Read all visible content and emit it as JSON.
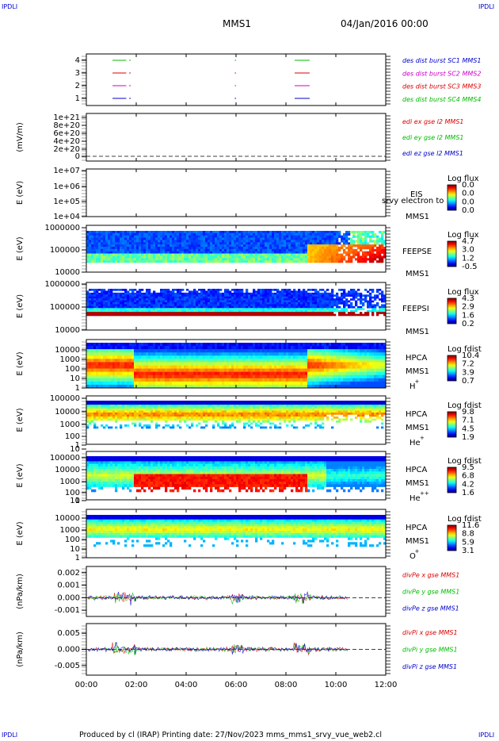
{
  "corner_label": "IPDLI",
  "header": {
    "spacecraft": "MMS1",
    "date": "04/Jan/2016 00:00"
  },
  "footer": "Produced by cl (IRAP)   Printing date: 27/Nov/2023   mms_mms1_srvy_vue_web2.cl",
  "colors": {
    "red": "#dd0000",
    "green": "#00bb00",
    "blue": "#0000cc",
    "magenta": "#cc00cc",
    "dashed": "#000000"
  },
  "chart_data": {
    "type": "stacked-timeseries",
    "x_ticks": [
      "00:00",
      "02:00",
      "04:00",
      "06:00",
      "08:00",
      "10:00",
      "12:00"
    ],
    "x_range_hours": [
      0,
      12
    ],
    "panels": [
      {
        "id": "burst",
        "type": "line",
        "yticks": [
          "4",
          "3",
          "2",
          "1"
        ],
        "legend": [
          {
            "text": "des dist burst SC1 MMS1",
            "color": "#0000cc"
          },
          {
            "text": "des dist burst SC2 MMS2",
            "color": "#cc00cc"
          },
          {
            "text": "des dist burst SC3 MMS3",
            "color": "#dd0000"
          },
          {
            "text": "des dist burst SC4 MMS4",
            "color": "#00bb00"
          }
        ],
        "segments": [
          {
            "level": 4,
            "color": "#00bb00",
            "x": [
              [
                1.05,
                1.6
              ],
              [
                1.72,
                1.78
              ],
              [
                5.95,
                6.0
              ],
              [
                8.35,
                8.95
              ]
            ]
          },
          {
            "level": 3,
            "color": "#dd0000",
            "x": [
              [
                1.05,
                1.6
              ],
              [
                1.72,
                1.78
              ],
              [
                5.95,
                6.0
              ],
              [
                8.35,
                8.95
              ]
            ]
          },
          {
            "level": 2,
            "color": "#cc00cc",
            "x": [
              [
                1.05,
                1.6
              ],
              [
                1.72,
                1.78
              ],
              [
                5.95,
                6.0
              ],
              [
                8.35,
                8.95
              ]
            ]
          },
          {
            "level": 1,
            "color": "#0000cc",
            "x": [
              [
                1.05,
                1.6
              ],
              [
                1.72,
                1.78
              ],
              [
                5.95,
                6.0
              ],
              [
                8.35,
                8.95
              ]
            ]
          }
        ]
      },
      {
        "id": "edi",
        "type": "line",
        "ylabel": "(mV/m)",
        "yticks": [
          "1e+21",
          "8e+20",
          "6e+20",
          "4e+20",
          "2e+20",
          "0"
        ],
        "legend": [
          {
            "text": "edi ex gse l2 MMS1",
            "color": "#dd0000"
          },
          {
            "text": "edi ey gse l2 MMS1",
            "color": "#00bb00"
          },
          {
            "text": "edi ez gse l2 MMS1",
            "color": "#0000cc"
          }
        ]
      },
      {
        "id": "eis",
        "type": "spectrogram",
        "ylabel": "E (eV)",
        "yticks": [
          "1e+07",
          "1e+06",
          "1e+05",
          "1e+04"
        ],
        "labels": [
          "EIS",
          "srvy electron to",
          "MMS1"
        ],
        "colorbar": {
          "title": "Log flux",
          "ticks": [
            "0.0",
            "0.0",
            "0.0",
            "0.0"
          ]
        }
      },
      {
        "id": "feepse",
        "type": "spectrogram",
        "ylabel": "E (eV)",
        "yticks": [
          "1000000",
          "100000",
          "10000"
        ],
        "labels": [
          "FEEPSE",
          "MMS1"
        ],
        "colorbar": {
          "title": "Log flux",
          "ticks": [
            "4.7",
            "3.0",
            "1.2",
            "-0.5"
          ]
        }
      },
      {
        "id": "feepsi",
        "type": "spectrogram",
        "ylabel": "E (eV)",
        "yticks": [
          "1000000",
          "100000",
          "10000"
        ],
        "labels": [
          "FEEPSI",
          "MMS1"
        ],
        "colorbar": {
          "title": "Log flux",
          "ticks": [
            "4.3",
            "2.9",
            "1.6",
            "0.2"
          ]
        }
      },
      {
        "id": "hpca_h",
        "type": "spectrogram",
        "ylabel": "E (eV)",
        "yticks": [
          "10000",
          "1000",
          "100",
          "10",
          "1"
        ],
        "labels": [
          "HPCA",
          "MMS1",
          "H",
          "+"
        ],
        "colorbar": {
          "title": "Log fdist",
          "ticks": [
            "10.4",
            "7.2",
            "3.9",
            "0.7"
          ]
        }
      },
      {
        "id": "hpca_he",
        "type": "spectrogram",
        "ylabel": "E (eV)",
        "yticks": [
          "100000",
          "10000",
          "1000",
          "100",
          "10",
          "1"
        ],
        "labels": [
          "HPCA",
          "MMS1",
          "He",
          "+"
        ],
        "colorbar": {
          "title": "Log fdist",
          "ticks": [
            "9.8",
            "7.1",
            "4.5",
            "1.9"
          ]
        }
      },
      {
        "id": "hpca_hepp",
        "type": "spectrogram",
        "ylabel": "E (eV)",
        "yticks": [
          "100000",
          "10000",
          "1000",
          "100",
          "10",
          "1"
        ],
        "labels": [
          "HPCA",
          "MMS1",
          "He",
          "++"
        ],
        "colorbar": {
          "title": "Log fdist",
          "ticks": [
            "9.5",
            "6.8",
            "4.2",
            "1.6"
          ]
        }
      },
      {
        "id": "hpca_o",
        "type": "spectrogram",
        "ylabel": "E (eV)",
        "yticks": [
          "10000",
          "1000",
          "100",
          "10",
          "1"
        ],
        "labels": [
          "HPCA",
          "MMS1",
          "O",
          "+"
        ],
        "colorbar": {
          "title": "Log fdist",
          "ticks": [
            "11.6",
            "8.8",
            "5.9",
            "3.1"
          ]
        }
      },
      {
        "id": "divpe",
        "type": "line",
        "ylabel": "(nPa/km)",
        "yticks": [
          "0.002",
          "0.001",
          "0.000",
          "-0.001"
        ],
        "ylim": [
          -0.0015,
          0.0025
        ],
        "legend": [
          {
            "text": "divPe x gse MMS1",
            "color": "#dd0000"
          },
          {
            "text": "divPe y gse MMS1",
            "color": "#00bb00"
          },
          {
            "text": "divPe z gse MMS1",
            "color": "#0000cc"
          }
        ]
      },
      {
        "id": "divpi",
        "type": "line",
        "ylabel": "(nPa/km)",
        "yticks": [
          "0.005",
          "0.000",
          "-0.005"
        ],
        "ylim": [
          -0.008,
          0.008
        ],
        "legend": [
          {
            "text": "divPi x gse MMS1",
            "color": "#dd0000"
          },
          {
            "text": "divPi y gse MMS1",
            "color": "#00bb00"
          },
          {
            "text": "divPi z gse MMS1",
            "color": "#0000cc"
          }
        ]
      }
    ]
  }
}
